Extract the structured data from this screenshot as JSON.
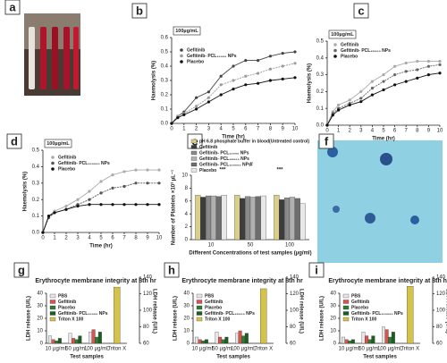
{
  "panel_labels": [
    "a",
    "b",
    "c",
    "d",
    "e",
    "f",
    "g",
    "h",
    "i"
  ],
  "chart_data": [
    {
      "type": "line",
      "note": "100µg/mL",
      "xlabel": "Time (hr)",
      "ylabel": "Haemolysis (%)",
      "x": [
        0,
        0.5,
        1,
        2,
        3,
        4,
        5,
        6,
        7,
        8,
        9,
        10
      ],
      "xlim": [
        0,
        10
      ],
      "xticks": [
        0,
        1,
        2,
        3,
        4,
        5,
        6,
        7,
        8,
        9,
        10
      ],
      "ylim": [
        0,
        0.6
      ],
      "yticks": [
        {
          "value": 0,
          "label": "0.0"
        },
        {
          "value": 0.1,
          "label": "0.1"
        },
        {
          "value": 0.2,
          "label": "0.2"
        },
        {
          "value": 0.3,
          "label": "0.3"
        },
        {
          "value": 0.4,
          "label": "0.4"
        },
        {
          "value": 0.5,
          "label": "0.5"
        },
        {
          "value": 0.6,
          "label": "0.6"
        }
      ],
      "series": [
        {
          "name": "Gefitinib",
          "color": "#444444",
          "values": [
            0,
            0.05,
            0.08,
            0.18,
            0.22,
            0.33,
            0.4,
            0.44,
            0.44,
            0.47,
            0.49,
            0.5
          ]
        },
        {
          "name": "Gefitinib- PCL₁₀₀₀₀ NPs",
          "color": "#9a9a9a",
          "values": [
            0,
            0.05,
            0.07,
            0.12,
            0.18,
            0.27,
            0.3,
            0.33,
            0.35,
            0.38,
            0.4,
            0.42
          ]
        },
        {
          "name": "Placebo",
          "color": "#111111",
          "values": [
            0,
            0.04,
            0.06,
            0.1,
            0.15,
            0.2,
            0.24,
            0.27,
            0.28,
            0.3,
            0.31,
            0.32
          ]
        }
      ]
    },
    {
      "type": "line",
      "note": "100µg/mL",
      "xlabel": "Time (hr)",
      "ylabel": "Haemolysis (%)",
      "x": [
        0,
        0.5,
        1,
        2,
        3,
        4,
        5,
        6,
        7,
        8,
        9,
        10
      ],
      "xlim": [
        0,
        10
      ],
      "xticks": [
        0,
        1,
        2,
        3,
        4,
        5,
        6,
        7,
        8,
        9,
        10
      ],
      "ylim": [
        0,
        0.5
      ],
      "yticks": [
        {
          "value": 0,
          "label": "0.0"
        },
        {
          "value": 0.1,
          "label": "0.1"
        },
        {
          "value": 0.2,
          "label": "0.2"
        },
        {
          "value": 0.3,
          "label": "0.3"
        },
        {
          "value": 0.4,
          "label": "0.4"
        },
        {
          "value": 0.5,
          "label": "0.5"
        }
      ],
      "series": [
        {
          "name": "Gefitinib",
          "color": "#aaaaaa",
          "values": [
            0,
            0.08,
            0.12,
            0.15,
            0.2,
            0.26,
            0.3,
            0.35,
            0.37,
            0.38,
            0.38,
            0.38
          ]
        },
        {
          "name": "Gefitinib- PCL₄₅₀₀₀ NPs",
          "color": "#666666",
          "values": [
            0,
            0.07,
            0.1,
            0.13,
            0.16,
            0.22,
            0.26,
            0.3,
            0.32,
            0.33,
            0.35,
            0.36
          ]
        },
        {
          "name": "Placebo",
          "color": "#111111",
          "values": [
            0,
            0.06,
            0.09,
            0.12,
            0.14,
            0.18,
            0.21,
            0.24,
            0.26,
            0.28,
            0.3,
            0.31
          ]
        }
      ]
    },
    {
      "type": "line",
      "note": "100µg/mL",
      "xlabel": "Time (hr)",
      "ylabel": "Haemolysis (%)",
      "x": [
        0,
        0.5,
        1,
        2,
        3,
        4,
        5,
        6,
        7,
        8,
        9,
        10
      ],
      "xlim": [
        0,
        10
      ],
      "xticks": [
        0,
        1,
        2,
        3,
        4,
        5,
        6,
        7,
        8,
        9,
        10
      ],
      "ylim": [
        0,
        0.5
      ],
      "yticks": [
        {
          "value": 0,
          "label": "0.0"
        },
        {
          "value": 0.1,
          "label": "0.1"
        },
        {
          "value": 0.2,
          "label": "0.2"
        },
        {
          "value": 0.3,
          "label": "0.3"
        },
        {
          "value": 0.4,
          "label": "0.4"
        },
        {
          "value": 0.5,
          "label": "0.5"
        }
      ],
      "series": [
        {
          "name": "Gefitinib",
          "color": "#aaaaaa",
          "values": [
            0,
            0.1,
            0.13,
            0.16,
            0.2,
            0.25,
            0.31,
            0.35,
            0.37,
            0.38,
            0.38,
            0.38
          ]
        },
        {
          "name": "Gefitinib- PCL₁₀₀₀₀₀ NPs",
          "color": "#555555",
          "values": [
            0,
            0.09,
            0.12,
            0.14,
            0.17,
            0.2,
            0.24,
            0.27,
            0.28,
            0.3,
            0.3,
            0.3
          ]
        },
        {
          "name": "Placebo",
          "color": "#111111",
          "values": [
            0,
            0.1,
            0.12,
            0.14,
            0.16,
            0.17,
            0.17,
            0.17,
            0.17,
            0.17,
            0.17,
            0.17
          ]
        }
      ]
    },
    {
      "type": "bar",
      "xlabel": "Different Concentrations of test samples (µg/ml)",
      "ylabel": "Number of Platelets ×10³ µL⁻¹",
      "annotations": [
        "***",
        "#",
        "***"
      ],
      "categories": [
        "10",
        "50",
        "100"
      ],
      "ylim": [
        0,
        10
      ],
      "yticks": [
        0,
        2,
        4,
        6,
        8,
        10
      ],
      "series": [
        {
          "name": "pH 6.8 phosphate buffer in blood(Untreated control)",
          "color": "#d9cf8a",
          "values": [
            6.9,
            6.9,
            6.9
          ]
        },
        {
          "name": "Gefitinib",
          "color": "#3d3d3d",
          "values": [
            6.6,
            6.4,
            6.2
          ]
        },
        {
          "name": "Gefitinib- PCL₁₀₀₀₀ NPs",
          "color": "#8a8a8a",
          "values": [
            6.8,
            6.7,
            6.5
          ]
        },
        {
          "name": "Gefitinib- PCL₄₅₀₀₀ NPs",
          "color": "#b0b0b0",
          "values": [
            6.8,
            6.6,
            6.6
          ]
        },
        {
          "name": "Gefitinib- PCL₁₀₀₀₀₀ NPs",
          "color": "#6d6d6d",
          "values": [
            6.7,
            6.7,
            6.4
          ]
        },
        {
          "name": "Placebo",
          "color": "#e8e8e8",
          "values": [
            6.9,
            6.8,
            5.6
          ]
        }
      ]
    },
    {
      "type": "bar",
      "title": "Erythrocyte membrane integrity at 8th hr",
      "xlabel": "Test samples",
      "ylabel": "LDH release (U/L)",
      "y2label": "LDH release (U/L)",
      "categories": [
        "10 µg/mL",
        "50 µg/mL",
        "100 µg/mL",
        "Triton X"
      ],
      "ylim": [
        0,
        40
      ],
      "yticks": [
        0,
        10,
        20,
        30,
        40
      ],
      "y2lim": [
        60,
        140
      ],
      "y2ticks": [
        60,
        80,
        100,
        120,
        140
      ],
      "series": [
        {
          "name": "PBS",
          "color": "#e6e6e6",
          "values": [
            6,
            8,
            9,
            null
          ]
        },
        {
          "name": "Gefitinib",
          "color": "#d9534f",
          "values": [
            3,
            4,
            11,
            null
          ]
        },
        {
          "name": "Placebo",
          "color": "#2e7d32",
          "values": [
            2,
            3,
            5,
            null
          ]
        },
        {
          "name": "Gefitinib- PCL₁₀₀₀₀ NPs",
          "color": "#1b5e20",
          "values": [
            4,
            6,
            9,
            null
          ]
        },
        {
          "name": "Triton X 100",
          "color": "#d4c24a",
          "axis": "y2",
          "values": [
            null,
            null,
            null,
            128
          ]
        }
      ]
    },
    {
      "type": "bar",
      "title": "Erythrocyte membrane integrity at 8th hr",
      "xlabel": "Test samples",
      "ylabel": "LDH release (U/L)",
      "y2label": "LDH release (U/L)",
      "categories": [
        "10 µg/mL",
        "50 µg/mL",
        "100 µg/mL",
        "Triton X"
      ],
      "ylim": [
        0,
        40
      ],
      "yticks": [
        0,
        10,
        20,
        30,
        40
      ],
      "y2lim": [
        60,
        140
      ],
      "y2ticks": [
        60,
        80,
        100,
        120,
        140
      ],
      "series": [
        {
          "name": "PBS",
          "color": "#e6e6e6",
          "values": [
            5,
            9,
            8,
            null
          ]
        },
        {
          "name": "Gefitinib",
          "color": "#d9534f",
          "values": [
            3,
            5,
            10,
            null
          ]
        },
        {
          "name": "Placebo",
          "color": "#2e7d32",
          "values": [
            2,
            3,
            6,
            null
          ]
        },
        {
          "name": "Gefitinib- PCL₄₅₀₀₀ NPs",
          "color": "#1b5e20",
          "values": [
            3,
            5,
            8,
            null
          ]
        },
        {
          "name": "Triton X 100",
          "color": "#d4c24a",
          "axis": "y2",
          "values": [
            null,
            null,
            null,
            126
          ]
        }
      ]
    },
    {
      "type": "bar",
      "title": "Erythrocyte membrane integrity at 8th hr",
      "xlabel": "Test samples",
      "ylabel": "LDH release (U/L)",
      "y2label": "LDH release (U/L)",
      "categories": [
        "10 µg/mL",
        "50 µg/mL",
        "100 µg/mL",
        "Triton X"
      ],
      "ylim": [
        0,
        40
      ],
      "yticks": [
        0,
        10,
        20,
        30,
        40
      ],
      "y2lim": [
        60,
        140
      ],
      "y2ticks": [
        60,
        80,
        100,
        120,
        140
      ],
      "series": [
        {
          "name": "PBS",
          "color": "#e6e6e6",
          "values": [
            5,
            9,
            13,
            null
          ]
        },
        {
          "name": "Gefitinib",
          "color": "#d9534f",
          "values": [
            3,
            6,
            11,
            null
          ]
        },
        {
          "name": "Placebo",
          "color": "#2e7d32",
          "values": [
            2,
            3,
            5,
            null
          ]
        },
        {
          "name": "Gefitinib- PCL₁₀₀₀₀₀ NPs",
          "color": "#1b5e20",
          "values": [
            3,
            6,
            9,
            null
          ]
        },
        {
          "name": "Triton X 100",
          "color": "#d4c24a",
          "axis": "y2",
          "values": [
            null,
            null,
            null,
            129
          ]
        }
      ]
    }
  ]
}
